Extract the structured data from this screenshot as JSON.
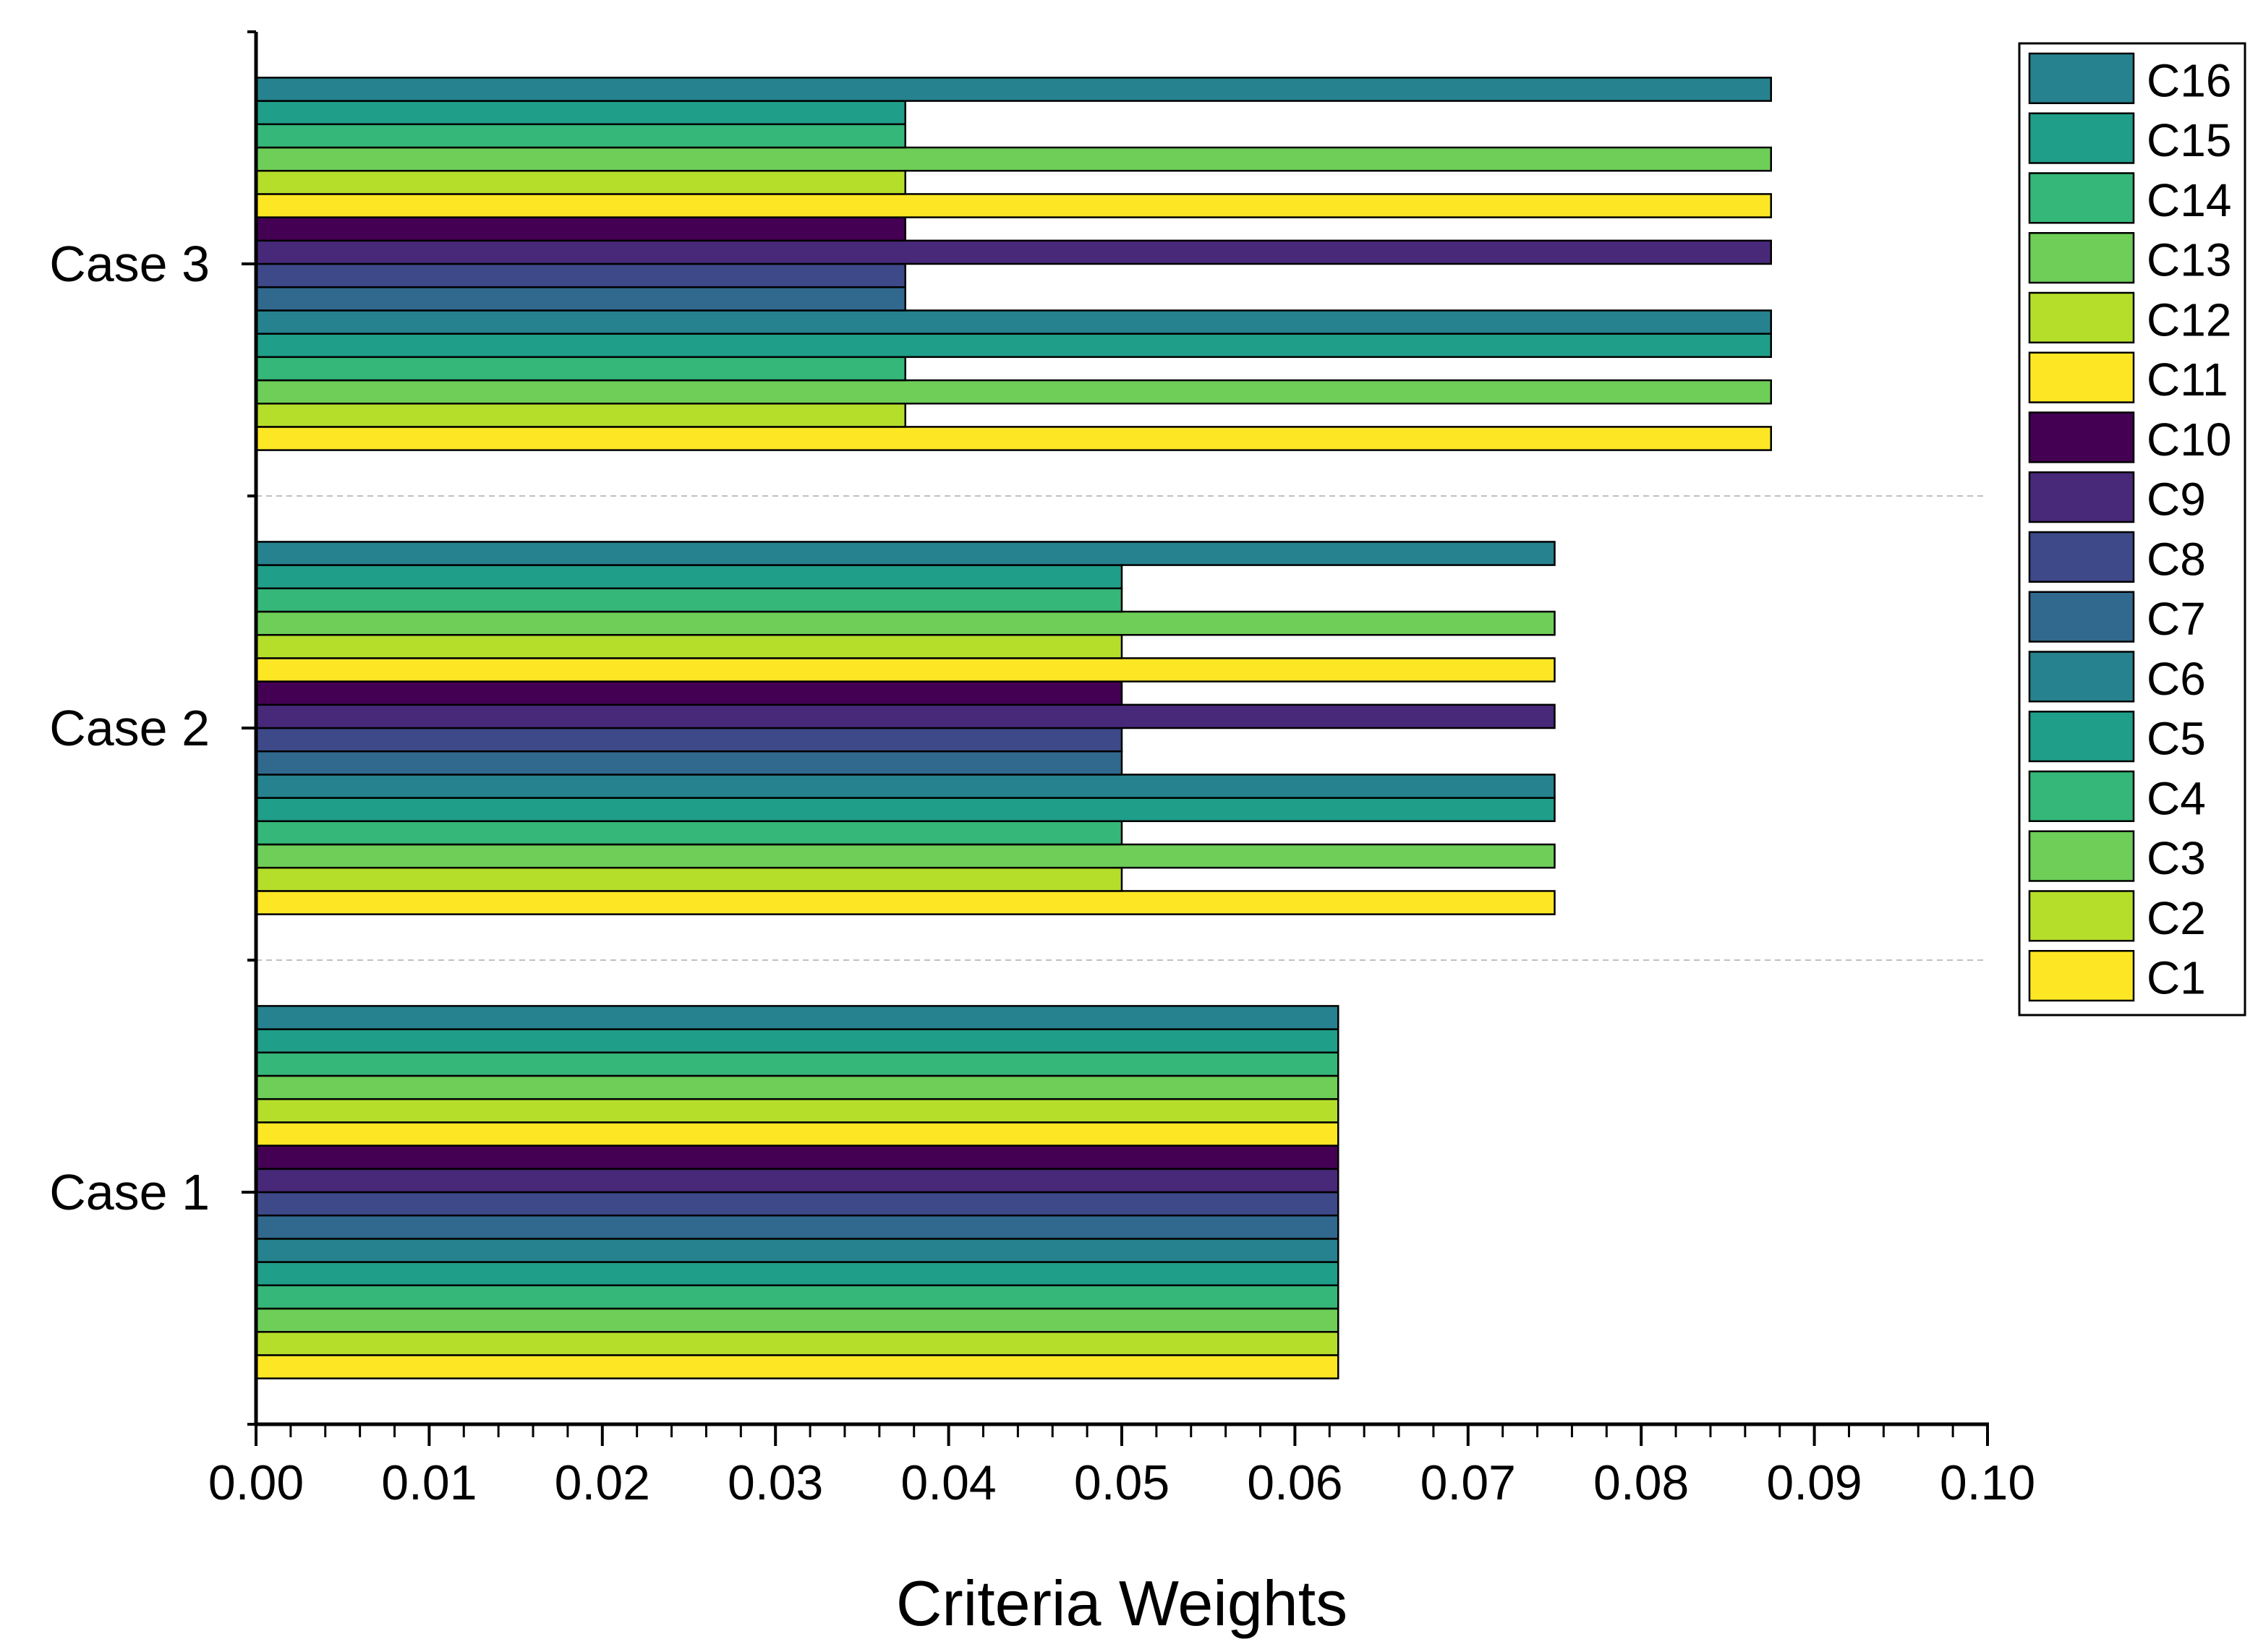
{
  "chart_data": {
    "type": "bar",
    "orientation": "horizontal",
    "title": "",
    "xlabel": "Criteria Weights",
    "ylabel": "",
    "xlim": [
      0,
      0.1
    ],
    "xticks": [
      "0.00",
      "0.01",
      "0.02",
      "0.03",
      "0.04",
      "0.05",
      "0.06",
      "0.07",
      "0.08",
      "0.09",
      "0.10"
    ],
    "categories": [
      "Case 1",
      "Case 2",
      "Case 3"
    ],
    "legend_position": "top-right, outside",
    "grid": false,
    "series": [
      {
        "name": "C1",
        "color": "#fde725",
        "values": [
          0.0625,
          0.075,
          0.0875
        ]
      },
      {
        "name": "C2",
        "color": "#b5de2b",
        "values": [
          0.0625,
          0.05,
          0.0375
        ]
      },
      {
        "name": "C3",
        "color": "#6ece58",
        "values": [
          0.0625,
          0.075,
          0.0875
        ]
      },
      {
        "name": "C4",
        "color": "#35b779",
        "values": [
          0.0625,
          0.05,
          0.0375
        ]
      },
      {
        "name": "C5",
        "color": "#1f9e89",
        "values": [
          0.0625,
          0.075,
          0.0875
        ]
      },
      {
        "name": "C6",
        "color": "#26828e",
        "values": [
          0.0625,
          0.075,
          0.0875
        ]
      },
      {
        "name": "C7",
        "color": "#31688e",
        "values": [
          0.0625,
          0.05,
          0.0375
        ]
      },
      {
        "name": "C8",
        "color": "#3e4989",
        "values": [
          0.0625,
          0.05,
          0.0375
        ]
      },
      {
        "name": "C9",
        "color": "#482878",
        "values": [
          0.0625,
          0.075,
          0.0875
        ]
      },
      {
        "name": "C10",
        "color": "#440154",
        "values": [
          0.0625,
          0.05,
          0.0375
        ]
      },
      {
        "name": "C11",
        "color": "#fde725",
        "values": [
          0.0625,
          0.075,
          0.0875
        ]
      },
      {
        "name": "C12",
        "color": "#b5de2b",
        "values": [
          0.0625,
          0.05,
          0.0375
        ]
      },
      {
        "name": "C13",
        "color": "#6ece58",
        "values": [
          0.0625,
          0.075,
          0.0875
        ]
      },
      {
        "name": "C14",
        "color": "#35b779",
        "values": [
          0.0625,
          0.05,
          0.0375
        ]
      },
      {
        "name": "C15",
        "color": "#1f9e89",
        "values": [
          0.0625,
          0.05,
          0.0375
        ]
      },
      {
        "name": "C16",
        "color": "#26828e",
        "values": [
          0.0625,
          0.075,
          0.0875
        ]
      }
    ]
  }
}
